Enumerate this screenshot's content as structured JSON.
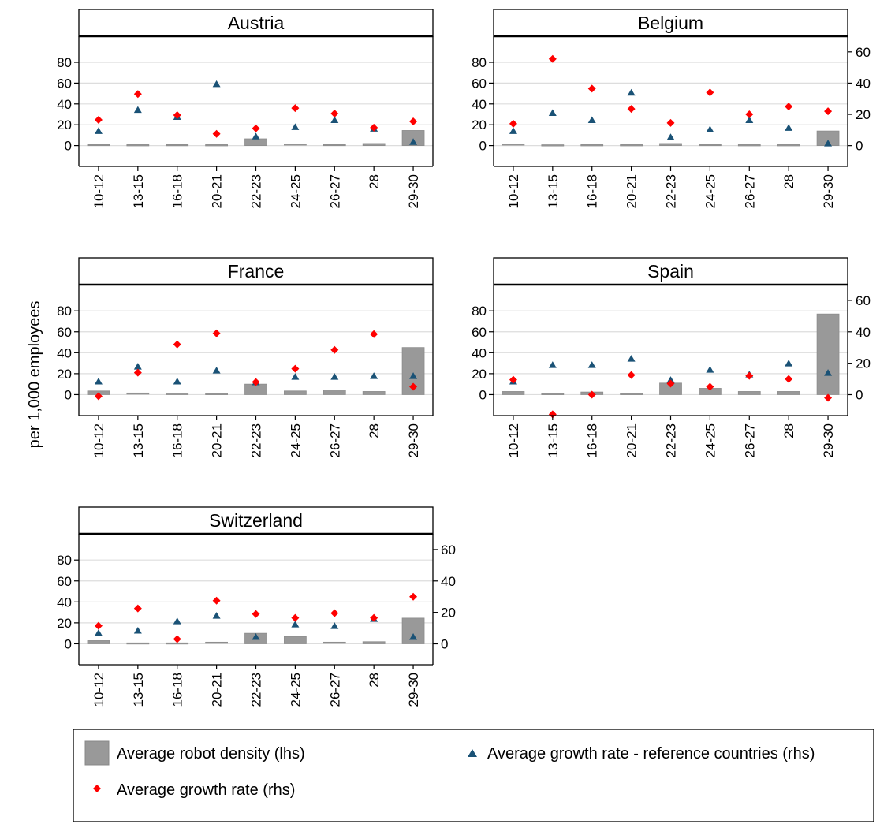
{
  "chart_data": {
    "type": "bar",
    "ylabel": "per 1,000 employees",
    "categories": [
      "10-12",
      "13-15",
      "16-18",
      "20-21",
      "22-23",
      "24-25",
      "26-27",
      "28",
      "29-30"
    ],
    "lhs_ticks": [
      0,
      20,
      40,
      60,
      80
    ],
    "rhs_ticks": [
      0,
      20,
      40,
      60
    ],
    "lhs_range": [
      -20,
      105
    ],
    "rhs_range": [
      -13.3,
      70
    ],
    "grid": "horizontal",
    "legend_position": "bottom",
    "legend": {
      "bar": "Average robot density (lhs)",
      "ref": "Average growth rate - reference countries (rhs)",
      "growth": "Average growth rate (rhs)"
    },
    "colors": {
      "bar": "#999999",
      "growth": "#ff0000",
      "ref": "#1a5276",
      "grid": "#dddddd"
    },
    "panels": [
      {
        "title": "Austria",
        "bar": [
          0.5,
          0.3,
          0.4,
          0.3,
          6.5,
          1.0,
          0.5,
          2.0,
          14.5
        ],
        "growth": [
          16.5,
          33,
          19.5,
          7.5,
          11,
          24,
          20.5,
          11.5,
          15.5
        ],
        "ref": [
          9.5,
          23,
          18.5,
          39.5,
          6,
          12,
          16.5,
          11,
          2.5
        ]
      },
      {
        "title": "Belgium",
        "bar": [
          1.0,
          0.2,
          0.3,
          0.3,
          2.0,
          0.5,
          0.3,
          0.3,
          14.0
        ],
        "growth": [
          14,
          55.5,
          36.5,
          23.5,
          14.5,
          34,
          20,
          25,
          22
        ],
        "ref": [
          9.5,
          21,
          16.5,
          34,
          5.5,
          10.5,
          16.5,
          11.5,
          1.5
        ]
      },
      {
        "title": "France",
        "bar": [
          3.5,
          1.0,
          1.5,
          0.5,
          10.0,
          3.5,
          4.5,
          3.0,
          45.0
        ],
        "growth": [
          -1,
          14,
          32,
          39,
          8,
          16.5,
          28.5,
          38.5,
          5
        ],
        "ref": [
          8.5,
          18,
          8.5,
          15.5,
          8,
          11.5,
          11.5,
          12,
          12
        ]
      },
      {
        "title": "Spain",
        "bar": [
          3.0,
          0.5,
          2.5,
          0.5,
          11.0,
          6.0,
          3.0,
          3.0,
          77.0
        ],
        "growth": [
          9.5,
          -12.5,
          0,
          12.5,
          7,
          5,
          12,
          10,
          -2
        ],
        "ref": [
          8.5,
          19,
          19,
          23,
          9.5,
          16,
          13,
          20,
          14
        ]
      },
      {
        "title": "Switzerland",
        "bar": [
          3.0,
          0.3,
          0.3,
          1.0,
          10.0,
          7.0,
          1.0,
          2.0,
          24.5
        ],
        "growth": [
          11.5,
          22.5,
          3,
          27.5,
          19,
          16.5,
          19.5,
          16.5,
          30
        ],
        "ref": [
          7,
          8.5,
          14.5,
          18,
          4.5,
          12.5,
          11.5,
          16,
          4.5
        ]
      }
    ]
  }
}
